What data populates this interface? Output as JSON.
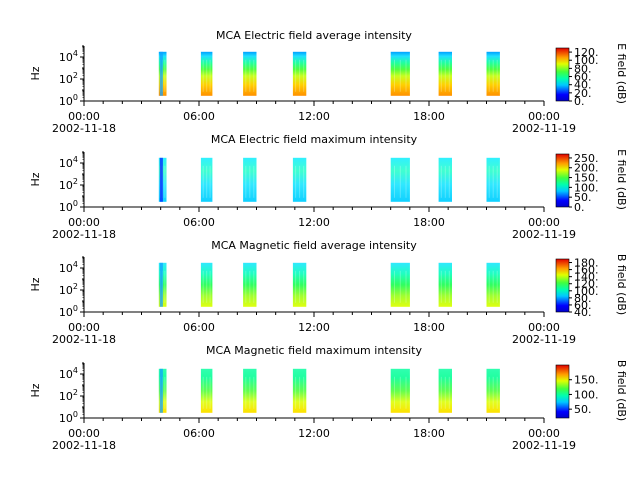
{
  "chart_data": [
    {
      "type": "heatmap",
      "title": "MCA  Electric field average intensity",
      "ylabel": "Hz",
      "y_scale": "log",
      "ylim": [
        1,
        100000
      ],
      "y_ticks": [
        "10^0",
        "10^2",
        "10^4"
      ],
      "x_ticks": [
        "00:00",
        "06:00",
        "12:00",
        "18:00",
        "00:00"
      ],
      "x_dates": [
        "2002-11-18",
        "2002-11-19"
      ],
      "xlim_hours": [
        0,
        24
      ],
      "colorbar_label": "E field (dB)",
      "colorbar_range": [
        0,
        130
      ],
      "colorbar_ticks": [
        "0.",
        "20.",
        "40.",
        "60.",
        "80.",
        "100.",
        "120."
      ],
      "intervals_hours": [
        [
          3.9,
          4.3
        ],
        [
          6.1,
          6.7
        ],
        [
          8.3,
          9.0
        ],
        [
          10.9,
          11.6
        ],
        [
          16.0,
          17.0
        ],
        [
          18.5,
          19.2
        ],
        [
          21.0,
          21.7
        ]
      ]
    },
    {
      "type": "heatmap",
      "title": "MCA  Electric field maximum intensity",
      "ylabel": "Hz",
      "y_scale": "log",
      "ylim": [
        1,
        100000
      ],
      "y_ticks": [
        "10^0",
        "10^2",
        "10^4"
      ],
      "x_ticks": [
        "00:00",
        "06:00",
        "12:00",
        "18:00",
        "00:00"
      ],
      "x_dates": [
        "2002-11-18",
        "2002-11-19"
      ],
      "xlim_hours": [
        0,
        24
      ],
      "colorbar_label": "E field (dB)",
      "colorbar_range": [
        0,
        270
      ],
      "colorbar_ticks": [
        "0.",
        "50.",
        "100.",
        "150.",
        "200.",
        "250."
      ],
      "intervals_hours": [
        [
          3.9,
          4.3
        ],
        [
          6.1,
          6.7
        ],
        [
          8.3,
          9.0
        ],
        [
          10.9,
          11.6
        ],
        [
          16.0,
          17.0
        ],
        [
          18.5,
          19.2
        ],
        [
          21.0,
          21.7
        ]
      ]
    },
    {
      "type": "heatmap",
      "title": "MCA  Magnetic field average intensity",
      "ylabel": "Hz",
      "y_scale": "log",
      "ylim": [
        1,
        100000
      ],
      "y_ticks": [
        "10^0",
        "10^2",
        "10^4"
      ],
      "x_ticks": [
        "00:00",
        "06:00",
        "12:00",
        "18:00",
        "00:00"
      ],
      "x_dates": [
        "2002-11-18",
        "2002-11-19"
      ],
      "xlim_hours": [
        0,
        24
      ],
      "colorbar_label": "B field (dB)",
      "colorbar_range": [
        40,
        190
      ],
      "colorbar_ticks": [
        "40.",
        "60.",
        "80.",
        "100.",
        "120.",
        "140.",
        "160.",
        "180."
      ],
      "intervals_hours": [
        [
          3.9,
          4.3
        ],
        [
          6.1,
          6.7
        ],
        [
          8.3,
          9.0
        ],
        [
          10.9,
          11.6
        ],
        [
          16.0,
          17.0
        ],
        [
          18.5,
          19.2
        ],
        [
          21.0,
          21.7
        ]
      ]
    },
    {
      "type": "heatmap",
      "title": "MCA  Magnetic field maximum intensity",
      "ylabel": "Hz",
      "y_scale": "log",
      "ylim": [
        1,
        100000
      ],
      "y_ticks": [
        "10^0",
        "10^2",
        "10^4"
      ],
      "x_ticks": [
        "00:00",
        "06:00",
        "12:00",
        "18:00",
        "00:00"
      ],
      "x_dates": [
        "2002-11-18",
        "2002-11-19"
      ],
      "xlim_hours": [
        0,
        24
      ],
      "colorbar_label": "B field (dB)",
      "colorbar_range": [
        20,
        200
      ],
      "colorbar_ticks": [
        "50.",
        "100.",
        "150."
      ],
      "intervals_hours": [
        [
          3.9,
          4.3
        ],
        [
          6.1,
          6.7
        ],
        [
          8.3,
          9.0
        ],
        [
          10.9,
          11.6
        ],
        [
          16.0,
          17.0
        ],
        [
          18.5,
          19.2
        ],
        [
          21.0,
          21.7
        ]
      ]
    }
  ]
}
